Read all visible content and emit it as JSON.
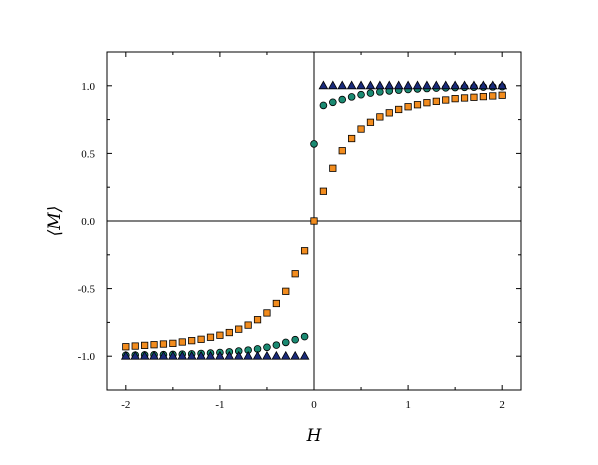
{
  "chart_data": {
    "type": "scatter",
    "title": "",
    "xlabel": "H",
    "ylabel": "⟨M⟩",
    "xlim": [
      -2.2,
      2.2
    ],
    "ylim": [
      -1.25,
      1.25
    ],
    "xticks": [
      -2,
      -1,
      0,
      1,
      2
    ],
    "xtick_labels": [
      "-2",
      "-1",
      "0",
      "1",
      "2"
    ],
    "yticks": [
      -1.0,
      -0.5,
      0.0,
      0.5,
      1.0
    ],
    "ytick_labels": [
      "-1.0",
      "-0.5",
      "0.0",
      "0.5",
      "1.0"
    ],
    "grid": false,
    "zero_lines": true,
    "legend": "none",
    "x": [
      -2.0,
      -1.9,
      -1.8,
      -1.7,
      -1.6,
      -1.5,
      -1.4,
      -1.3,
      -1.2,
      -1.1,
      -1.0,
      -0.9,
      -0.8,
      -0.7,
      -0.6,
      -0.5,
      -0.4,
      -0.3,
      -0.2,
      -0.1,
      0.0,
      0.1,
      0.2,
      0.3,
      0.4,
      0.5,
      0.6,
      0.7,
      0.8,
      0.9,
      1.0,
      1.1,
      1.2,
      1.3,
      1.4,
      1.5,
      1.6,
      1.7,
      1.8,
      1.9,
      2.0
    ],
    "series": [
      {
        "marker": "square",
        "color": "#F28C1E",
        "values": [
          -0.93,
          -0.925,
          -0.92,
          -0.915,
          -0.91,
          -0.905,
          -0.895,
          -0.885,
          -0.875,
          -0.86,
          -0.845,
          -0.825,
          -0.8,
          -0.77,
          -0.73,
          -0.68,
          -0.61,
          -0.52,
          -0.39,
          -0.22,
          0.0,
          0.22,
          0.39,
          0.52,
          0.61,
          0.68,
          0.73,
          0.77,
          0.8,
          0.825,
          0.845,
          0.86,
          0.875,
          0.885,
          0.895,
          0.905,
          0.91,
          0.915,
          0.92,
          0.925,
          0.93
        ]
      },
      {
        "marker": "circle",
        "color": "#1B8A72",
        "values": [
          -0.993,
          -0.992,
          -0.991,
          -0.99,
          -0.989,
          -0.987,
          -0.985,
          -0.983,
          -0.98,
          -0.977,
          -0.973,
          -0.968,
          -0.962,
          -0.955,
          -0.946,
          -0.934,
          -0.918,
          -0.898,
          -0.878,
          -0.855,
          0.57,
          0.855,
          0.878,
          0.898,
          0.918,
          0.934,
          0.946,
          0.955,
          0.962,
          0.968,
          0.973,
          0.977,
          0.98,
          0.983,
          0.985,
          0.987,
          0.989,
          0.99,
          0.991,
          0.992,
          0.993
        ]
      },
      {
        "marker": "triangle",
        "color": "#1A2B7A",
        "values": [
          -1.0,
          -1.0,
          -1.0,
          -1.0,
          -1.0,
          -1.0,
          -1.0,
          -1.0,
          -1.0,
          -1.0,
          -1.0,
          -1.0,
          -1.0,
          -1.0,
          -1.0,
          -1.0,
          -1.0,
          -1.0,
          -1.0,
          -1.0,
          null,
          1.0,
          1.0,
          1.0,
          1.0,
          1.0,
          1.0,
          1.0,
          1.0,
          1.0,
          1.0,
          1.0,
          1.0,
          1.0,
          1.0,
          1.0,
          1.0,
          1.0,
          1.0,
          1.0,
          1.0
        ]
      }
    ]
  }
}
